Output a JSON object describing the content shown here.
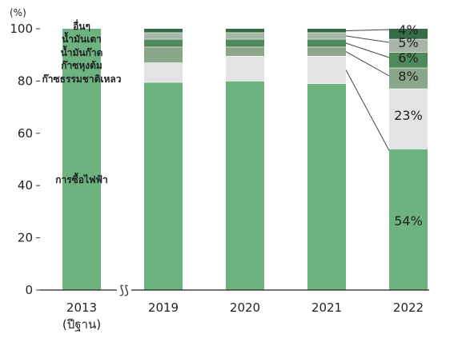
{
  "chart_data": {
    "type": "bar",
    "stacked": true,
    "unit_label": "(%)",
    "ylim": [
      0,
      100
    ],
    "yticks": [
      0,
      20,
      40,
      60,
      80,
      100
    ],
    "categories": [
      "2013",
      "2019",
      "2020",
      "2021",
      "2022"
    ],
    "category_sublabels": [
      "(ปีฐาน)",
      "",
      "",
      "",
      ""
    ],
    "series": [
      {
        "name": "การซื้อไฟฟ้า",
        "color": "#6db37f",
        "values": [
          100,
          79.5,
          80,
          79,
          54
        ]
      },
      {
        "name": "ก๊าซธรรมชาติเหลว",
        "color": "#e2e4e3",
        "values": [
          0,
          7.5,
          9.5,
          10.5,
          23
        ]
      },
      {
        "name": "ก๊าซหุงต้ม",
        "color": "#8aa889",
        "values": [
          0,
          6,
          3.5,
          3.5,
          8
        ]
      },
      {
        "name": "น้ำมันก๊าด",
        "color": "#4e8a5b",
        "values": [
          0,
          3,
          3,
          3,
          6
        ]
      },
      {
        "name": "น้ำมันเตา",
        "color": "#a7b4a8",
        "values": [
          0,
          2.5,
          2.5,
          2.5,
          5
        ]
      },
      {
        "name": "อื่นๆ",
        "color": "#356b45",
        "values": [
          0,
          1.5,
          1.5,
          1.5,
          4
        ]
      }
    ],
    "data_labels_2022": [
      "54%",
      "23%",
      "8%",
      "6%",
      "5%",
      "4%"
    ],
    "axis_break": "⟆⟆",
    "grid": false,
    "legend": "inline-left"
  }
}
